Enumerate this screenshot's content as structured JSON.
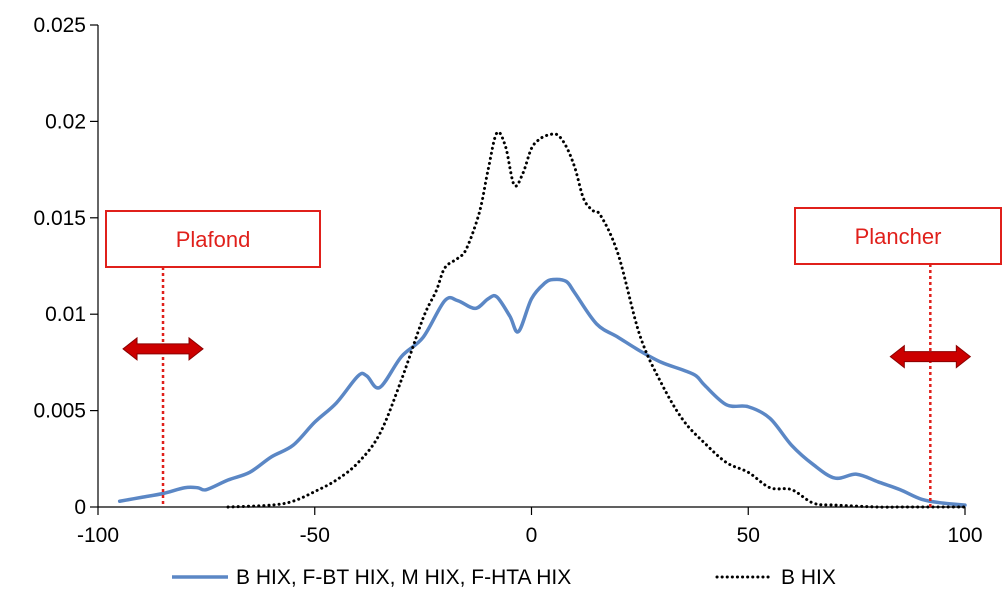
{
  "chart_data": {
    "type": "line",
    "title": "",
    "xlabel": "",
    "ylabel": "",
    "xlim": [
      -100,
      100
    ],
    "ylim": [
      0,
      0.025
    ],
    "x_ticks": [
      -100,
      -50,
      0,
      50,
      100
    ],
    "x_tick_labels": [
      "-100",
      "-50",
      "0",
      "50",
      "100"
    ],
    "y_ticks": [
      0,
      0.005,
      0.01,
      0.015,
      0.02,
      0.025
    ],
    "y_tick_labels": [
      "0",
      "0.005",
      "0.01",
      "0.015",
      "0.02",
      "0.025"
    ],
    "grid": false,
    "legend_position": "bottom",
    "series": [
      {
        "name": "B HIX, F-BT HIX, M HIX, F-HTA HIX",
        "color": "#5b87c5",
        "style": "solid",
        "x": [
          -95,
          -90,
          -85,
          -80,
          -77,
          -75,
          -70,
          -65,
          -60,
          -55,
          -50,
          -45,
          -40,
          -38,
          -35,
          -30,
          -25,
          -20,
          -17,
          -13,
          -10,
          -8,
          -5,
          -3,
          0,
          3,
          5,
          8,
          10,
          15,
          20,
          25,
          30,
          35,
          38,
          40,
          45,
          50,
          55,
          60,
          65,
          70,
          75,
          80,
          85,
          90,
          95,
          100
        ],
        "values": [
          0.0003,
          0.0005,
          0.0007,
          0.001,
          0.001,
          0.0009,
          0.0014,
          0.0018,
          0.0026,
          0.0032,
          0.0044,
          0.0054,
          0.0068,
          0.0068,
          0.0062,
          0.0078,
          0.0088,
          0.0107,
          0.0107,
          0.0103,
          0.0108,
          0.0109,
          0.0099,
          0.0091,
          0.0108,
          0.0116,
          0.0118,
          0.0117,
          0.0111,
          0.0095,
          0.0088,
          0.0081,
          0.0075,
          0.0071,
          0.0068,
          0.0063,
          0.0053,
          0.0052,
          0.0046,
          0.0032,
          0.0022,
          0.0015,
          0.0017,
          0.0013,
          0.0009,
          0.0004,
          0.0002,
          0.0001
        ]
      },
      {
        "name": "B HIX",
        "color": "#000000",
        "style": "dotted",
        "x": [
          -70,
          -60,
          -55,
          -50,
          -45,
          -40,
          -35,
          -30,
          -25,
          -22,
          -20,
          -17,
          -15,
          -12,
          -10,
          -8,
          -6,
          -4,
          -2,
          0,
          2,
          4,
          6,
          8,
          10,
          12,
          14,
          16,
          20,
          25,
          30,
          35,
          40,
          45,
          50,
          55,
          60,
          65,
          70,
          80,
          85,
          90,
          95,
          100
        ],
        "values": [
          0,
          0.0001,
          0.0003,
          0.0008,
          0.0014,
          0.0023,
          0.0038,
          0.0066,
          0.0098,
          0.0112,
          0.0124,
          0.0129,
          0.0134,
          0.0153,
          0.0175,
          0.0194,
          0.0187,
          0.0167,
          0.0173,
          0.0186,
          0.0191,
          0.0193,
          0.0193,
          0.0187,
          0.0176,
          0.016,
          0.0154,
          0.0151,
          0.0131,
          0.0089,
          0.0064,
          0.0045,
          0.0033,
          0.0023,
          0.0018,
          0.001,
          0.0009,
          0.0002,
          0.0001,
          0,
          0,
          0,
          0,
          0
        ]
      }
    ],
    "annotations": [
      {
        "label": "Plafond",
        "x": -85,
        "arrow_center_x": -85,
        "arrow_y": 0.0082
      },
      {
        "label": "Plancher",
        "x": 92,
        "arrow_center_x": 92,
        "arrow_y": 0.0078
      }
    ],
    "annotation_color": "#e0201b",
    "arrow_color": "#cc0000"
  }
}
